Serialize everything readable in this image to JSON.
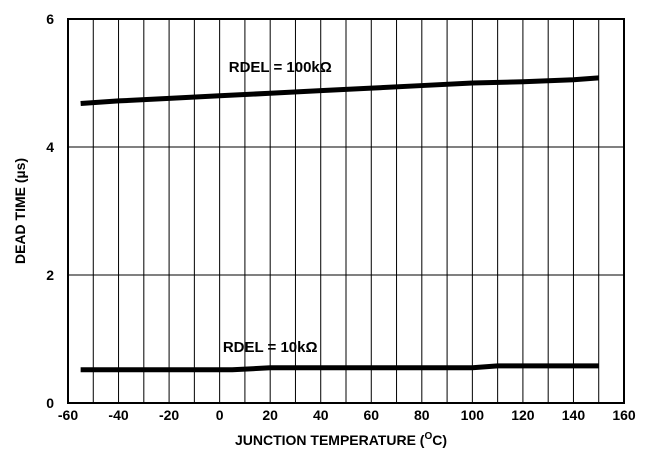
{
  "chart_data": {
    "type": "line",
    "xlabel": "JUNCTION TEMPERATURE (",
    "xlabel_sup": "O",
    "xlabel_tail": "C)",
    "ylabel": "DEAD TIME (µs)",
    "xlim": [
      -60,
      160
    ],
    "ylim": [
      0,
      6
    ],
    "xticks": [
      "-60",
      "-40",
      "-20",
      "0",
      "20",
      "40",
      "60",
      "80",
      "100",
      "120",
      "140",
      "160"
    ],
    "yticks": [
      "0",
      "2",
      "4",
      "6"
    ],
    "grid": true,
    "series": [
      {
        "name": "RDEL = 100kΩ",
        "x": [
          -55,
          -40,
          -20,
          0,
          20,
          40,
          60,
          80,
          100,
          120,
          140,
          150
        ],
        "y": [
          4.68,
          4.72,
          4.76,
          4.8,
          4.84,
          4.88,
          4.92,
          4.96,
          5.0,
          5.02,
          5.05,
          5.08
        ]
      },
      {
        "name": "RDEL = 10kΩ",
        "x": [
          -55,
          -20,
          5,
          20,
          60,
          100,
          110,
          150
        ],
        "y": [
          0.52,
          0.52,
          0.52,
          0.55,
          0.55,
          0.55,
          0.58,
          0.58
        ]
      }
    ]
  }
}
